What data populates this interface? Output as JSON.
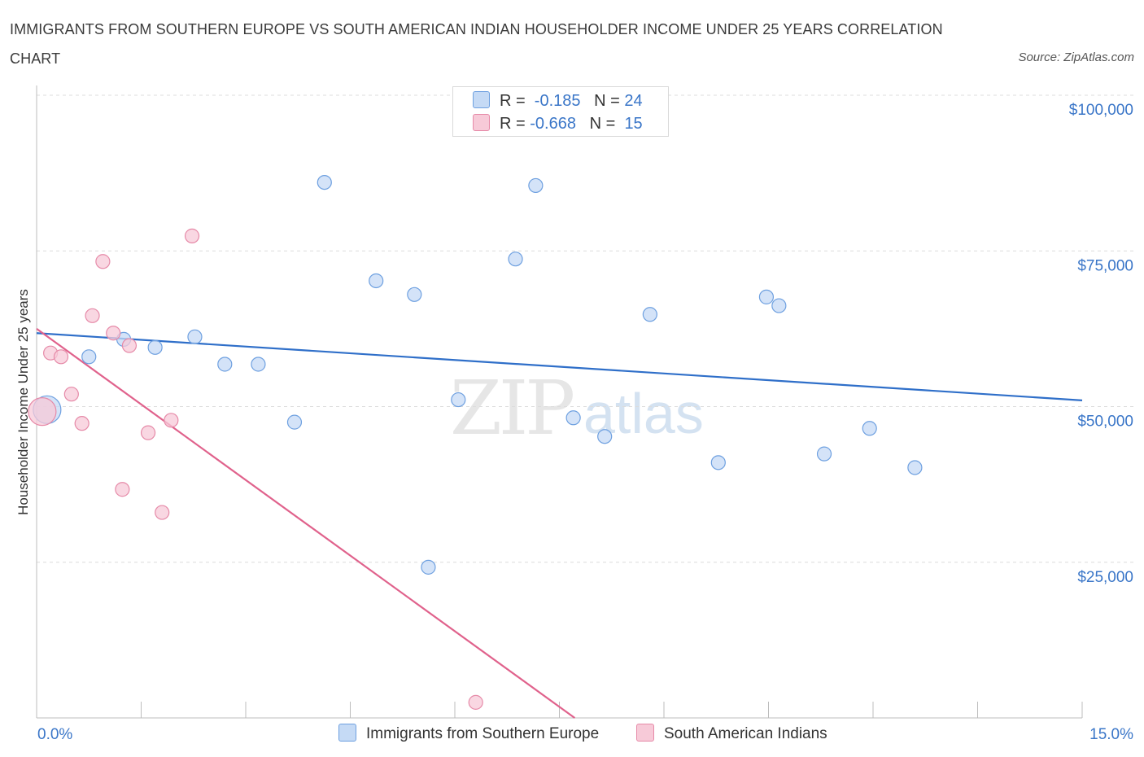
{
  "chart_data": {
    "type": "scatter",
    "title": "IMMIGRANTS FROM SOUTHERN EUROPE VS SOUTH AMERICAN INDIAN HOUSEHOLDER INCOME UNDER 25 YEARS CORRELATION CHART",
    "source": "Source: ZipAtlas.com",
    "ylabel": "Householder Income Under 25 years",
    "xlabel": "",
    "xlim": [
      0,
      15
    ],
    "ylim": [
      0,
      100000
    ],
    "x_tick_labels": {
      "min": "0.0%",
      "max": "15.0%"
    },
    "y_ticks": [
      {
        "value": 25000,
        "label": "$25,000"
      },
      {
        "value": 50000,
        "label": "$50,000"
      },
      {
        "value": 75000,
        "label": "$75,000"
      },
      {
        "value": 100000,
        "label": "$100,000"
      }
    ],
    "watermark": {
      "zip": "ZIP",
      "atlas": "atlas"
    },
    "series": [
      {
        "name": "Immigrants from Southern Europe",
        "color": "#6ea0e0",
        "fill": "#c5daf5",
        "line_color": "#2f6fc9",
        "R": "-0.185",
        "N": "24",
        "trend": {
          "x0": 0.0,
          "y0": 61800,
          "x1": 15.0,
          "y1": 51000
        },
        "points": [
          {
            "x": 0.15,
            "y": 49500,
            "big": true
          },
          {
            "x": 0.75,
            "y": 58000
          },
          {
            "x": 1.25,
            "y": 60800
          },
          {
            "x": 1.7,
            "y": 59500
          },
          {
            "x": 2.27,
            "y": 61200
          },
          {
            "x": 2.7,
            "y": 56800
          },
          {
            "x": 3.18,
            "y": 56800
          },
          {
            "x": 3.7,
            "y": 47500
          },
          {
            "x": 4.13,
            "y": 86000
          },
          {
            "x": 4.87,
            "y": 70200
          },
          {
            "x": 5.42,
            "y": 68000
          },
          {
            "x": 5.62,
            "y": 24200
          },
          {
            "x": 6.05,
            "y": 51100
          },
          {
            "x": 6.87,
            "y": 73700
          },
          {
            "x": 7.16,
            "y": 85500
          },
          {
            "x": 7.7,
            "y": 48200
          },
          {
            "x": 8.15,
            "y": 45200
          },
          {
            "x": 8.8,
            "y": 64800
          },
          {
            "x": 9.78,
            "y": 41000
          },
          {
            "x": 10.47,
            "y": 67600
          },
          {
            "x": 10.65,
            "y": 66200
          },
          {
            "x": 11.3,
            "y": 42400
          },
          {
            "x": 11.95,
            "y": 46500
          },
          {
            "x": 12.6,
            "y": 40200
          }
        ]
      },
      {
        "name": "South American Indians",
        "color": "#e68aa8",
        "fill": "#f7cad8",
        "line_color": "#e0628c",
        "R": "-0.668",
        "N": "15",
        "trend": {
          "x0": 0.0,
          "y0": 62500,
          "x1": 7.72,
          "y1": 0
        },
        "points": [
          {
            "x": 0.08,
            "y": 49200,
            "big": true
          },
          {
            "x": 0.2,
            "y": 58600
          },
          {
            "x": 0.35,
            "y": 58000
          },
          {
            "x": 0.5,
            "y": 52000
          },
          {
            "x": 0.65,
            "y": 47300
          },
          {
            "x": 0.8,
            "y": 64600
          },
          {
            "x": 0.95,
            "y": 73300
          },
          {
            "x": 1.1,
            "y": 61800
          },
          {
            "x": 1.23,
            "y": 36700
          },
          {
            "x": 1.33,
            "y": 59800
          },
          {
            "x": 1.6,
            "y": 45800
          },
          {
            "x": 1.8,
            "y": 33000
          },
          {
            "x": 1.93,
            "y": 47800
          },
          {
            "x": 2.23,
            "y": 77400
          },
          {
            "x": 6.3,
            "y": 2500
          }
        ]
      }
    ]
  }
}
